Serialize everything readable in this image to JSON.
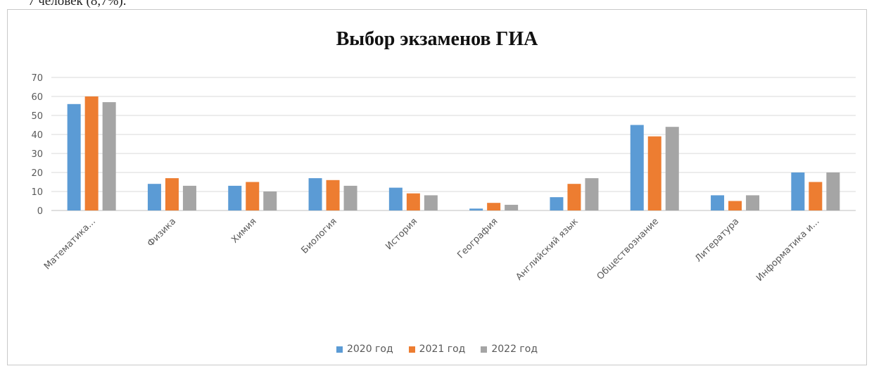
{
  "page": {
    "clipped_text": "7 человек (8,7%)."
  },
  "chart_data": {
    "type": "bar",
    "title": "Выбор экзаменов ГИА",
    "xlabel": "",
    "ylabel": "",
    "ylim": [
      0,
      70
    ],
    "yticks": [
      0,
      10,
      20,
      30,
      40,
      50,
      60,
      70
    ],
    "grid": true,
    "legend_position": "bottom",
    "categories": [
      "Математика...",
      "Физика",
      "Химия",
      "Биология",
      "История",
      "География",
      "Английский язык",
      "Обществознание",
      "Литература",
      "Информатика и..."
    ],
    "series": [
      {
        "name": "2020 год",
        "color": "#5b9bd5",
        "values": [
          56,
          14,
          13,
          17,
          12,
          1,
          7,
          45,
          8,
          20
        ]
      },
      {
        "name": "2021 год",
        "color": "#ed7d31",
        "values": [
          60,
          17,
          15,
          16,
          9,
          4,
          14,
          39,
          5,
          15
        ]
      },
      {
        "name": "2022 год",
        "color": "#a5a5a5",
        "values": [
          57,
          13,
          10,
          13,
          8,
          3,
          17,
          44,
          8,
          20
        ]
      }
    ]
  }
}
